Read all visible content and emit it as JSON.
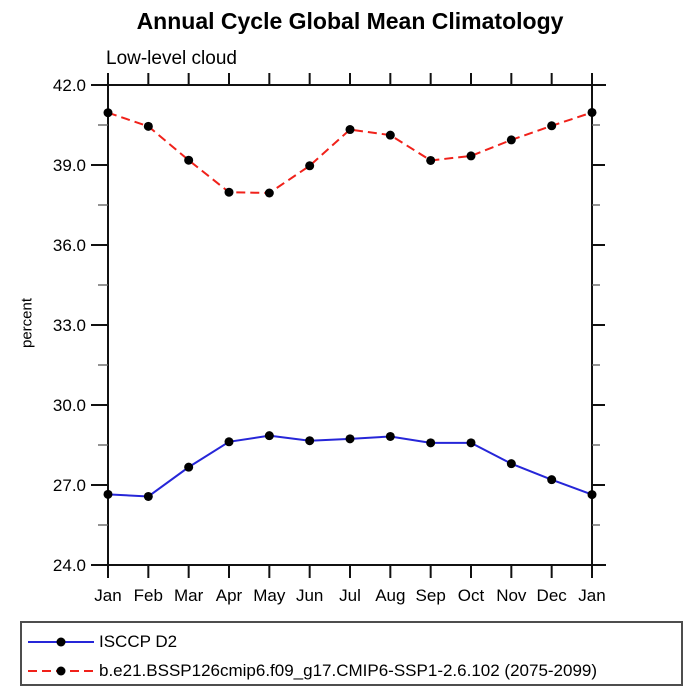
{
  "chart_data": {
    "type": "line",
    "title": "Annual Cycle Global Mean Climatology",
    "subtitle": "Low-level cloud",
    "ylabel": "percent",
    "xlabel": "",
    "categories": [
      "Jan",
      "Feb",
      "Mar",
      "Apr",
      "May",
      "Jun",
      "Jul",
      "Aug",
      "Sep",
      "Oct",
      "Nov",
      "Dec",
      "Jan"
    ],
    "ylim": [
      24.0,
      42.0
    ],
    "y_major_step": 3.0,
    "y_minor_step": 1.5,
    "y_tick_labels": [
      "24.0",
      "27.0",
      "30.0",
      "33.0",
      "36.0",
      "39.0",
      "42.0"
    ],
    "grid": false,
    "legend_position": "bottom-left",
    "frame_color": "#111111",
    "minor_tick_color": "#666666",
    "marker_color": "#000000",
    "series": [
      {
        "name": "ISCCP D2",
        "color": "#2626d8",
        "line_style": "solid",
        "marker": "filled-circle",
        "values": [
          26.65,
          26.57,
          27.67,
          28.62,
          28.85,
          28.66,
          28.73,
          28.82,
          28.58,
          28.58,
          27.8,
          27.2,
          26.64
        ]
      },
      {
        "name": "b.e21.BSSP126cmip6.f09_g17.CMIP6-SSP1-2.6.102 (2075-2099)",
        "color": "#f0211a",
        "line_style": "dashed",
        "marker": "filled-circle",
        "values": [
          40.96,
          40.45,
          39.18,
          37.98,
          37.95,
          38.97,
          40.33,
          40.12,
          39.17,
          39.34,
          39.94,
          40.47,
          40.97
        ]
      }
    ]
  }
}
